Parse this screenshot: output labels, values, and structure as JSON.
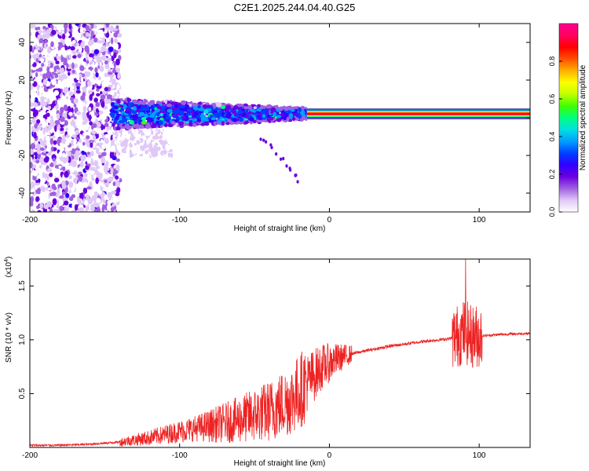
{
  "figure_title": "C2E1.2025.244.04.40.G25",
  "chart_data": [
    {
      "type": "heatmap",
      "name": "spectrogram",
      "xlabel": "Height of straight line (km)",
      "ylabel": "Frequency (Hz)",
      "xlim": [
        -200,
        134
      ],
      "ylim": [
        -50,
        50
      ],
      "xticks": [
        -200,
        -100,
        0,
        100
      ],
      "yticks": [
        -40,
        -20,
        0,
        20,
        40
      ],
      "xtick_labels": [
        "-200",
        "-100",
        "0",
        "100"
      ],
      "ytick_labels": [
        "-40",
        "-20",
        "0",
        "20",
        "40"
      ],
      "colorbar": {
        "label": "Normalized spectral amplitude",
        "range": [
          0,
          1
        ],
        "ticks": [
          0.0,
          0.2,
          0.4,
          0.6,
          0.8
        ],
        "tick_labels": [
          "0.0",
          "0.2",
          "0.4",
          "0.6",
          "0.8"
        ],
        "colors": [
          "#ffffff",
          "#e0c8f8",
          "#a060e0",
          "#6a00e0",
          "#3000ff",
          "#0040ff",
          "#00a0ff",
          "#00e0e0",
          "#00ff80",
          "#40ff00",
          "#c0ff00",
          "#ffff00",
          "#ffb000",
          "#ff5000",
          "#ff0000",
          "#ff0060",
          "#ff0090"
        ]
      },
      "regions": [
        {
          "x": [
            -200,
            -145
          ],
          "freq": [
            -50,
            50
          ],
          "amplitude": [
            0.05,
            0.25
          ],
          "description": "scattered noise"
        },
        {
          "x": [
            -145,
            -15
          ],
          "freq": [
            -5,
            8
          ],
          "amplitude": [
            0.2,
            0.45
          ]
        },
        {
          "x": [
            -15,
            134
          ],
          "freq": [
            1,
            3
          ],
          "amplitude": [
            0.85,
            1.0
          ]
        }
      ],
      "tail": {
        "x": [
          -45,
          -20
        ],
        "freq": [
          -10,
          -33
        ]
      }
    },
    {
      "type": "line",
      "name": "snr",
      "xlabel": "Height of straight line (km)",
      "ylabel": "SNR (10 * v/v)",
      "multiplier_label": "(x10",
      "multiplier_exp": "4",
      "multiplier_close": ")",
      "xlim": [
        -200,
        134
      ],
      "ylim": [
        0.0,
        1.75
      ],
      "xticks": [
        -200,
        -100,
        0,
        100
      ],
      "yticks": [
        0.5,
        1.0,
        1.5
      ],
      "xtick_labels": [
        "-200",
        "-100",
        "0",
        "100"
      ],
      "ytick_labels": [
        "0.5",
        "1.0",
        "1.5"
      ],
      "color": "#ee2222",
      "series": [
        {
          "name": "SNR",
          "x": [
            -200,
            -180,
            -160,
            -140,
            -120,
            -100,
            -80,
            -60,
            -40,
            -25,
            -15,
            -5,
            5,
            15,
            25,
            40,
            60,
            80,
            85,
            90,
            95,
            105,
            115,
            134
          ],
          "values": [
            0.02,
            0.02,
            0.03,
            0.05,
            0.09,
            0.15,
            0.2,
            0.26,
            0.34,
            0.45,
            0.6,
            0.75,
            0.82,
            0.87,
            0.9,
            0.94,
            0.98,
            1.01,
            1.03,
            1.08,
            1.03,
            1.04,
            1.05,
            1.06
          ]
        }
      ],
      "peak": {
        "x": 91,
        "value": 1.75
      }
    }
  ]
}
